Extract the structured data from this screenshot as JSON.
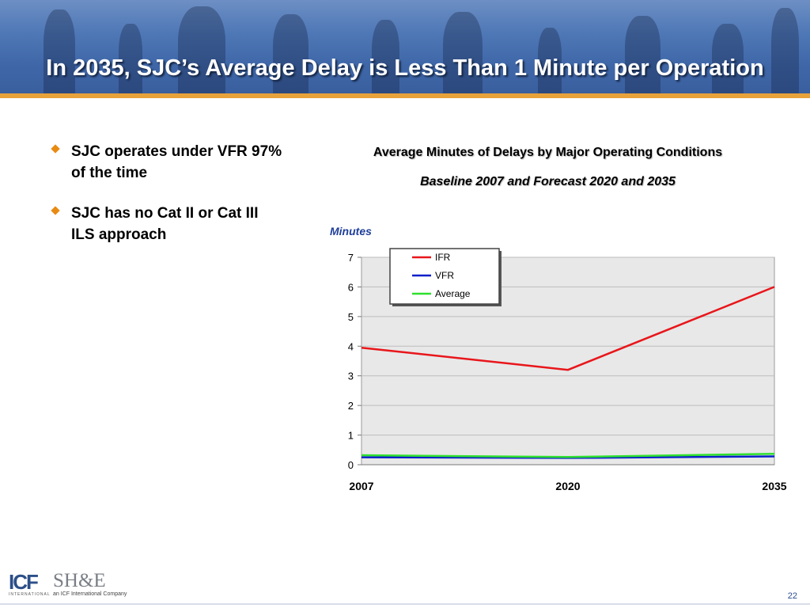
{
  "header": {
    "title": "In 2035, SJC’s Average Delay is Less Than 1 Minute per Operation"
  },
  "bullets": [
    "SJC operates under VFR 97% of the time",
    "SJC has no Cat II or Cat III ILS approach"
  ],
  "chart_data": {
    "type": "line",
    "title": "Average Minutes of Delays by Major Operating Conditions",
    "subtitle": "Baseline 2007 and Forecast 2020 and 2035",
    "ylabel": "Minutes",
    "xlabel": "",
    "categories": [
      "2007",
      "2020",
      "2035"
    ],
    "yticks": [
      0,
      1,
      2,
      3,
      4,
      5,
      6,
      7
    ],
    "ylim": [
      0,
      7
    ],
    "grid": true,
    "legend": "top-left",
    "series": [
      {
        "name": "IFR",
        "color": "#e8161b",
        "values": [
          3.95,
          3.2,
          6.0
        ]
      },
      {
        "name": "VFR",
        "color": "#0a1fc9",
        "values": [
          0.25,
          0.23,
          0.28
        ]
      },
      {
        "name": "Average",
        "color": "#2fe02f",
        "values": [
          0.32,
          0.26,
          0.37
        ]
      }
    ]
  },
  "footer": {
    "page_number": "22",
    "logo_icf": "ICF",
    "logo_icf_sub": "INTERNATIONAL",
    "logo_she": "SH&E",
    "logo_she_sub": "an ICF International Company"
  }
}
